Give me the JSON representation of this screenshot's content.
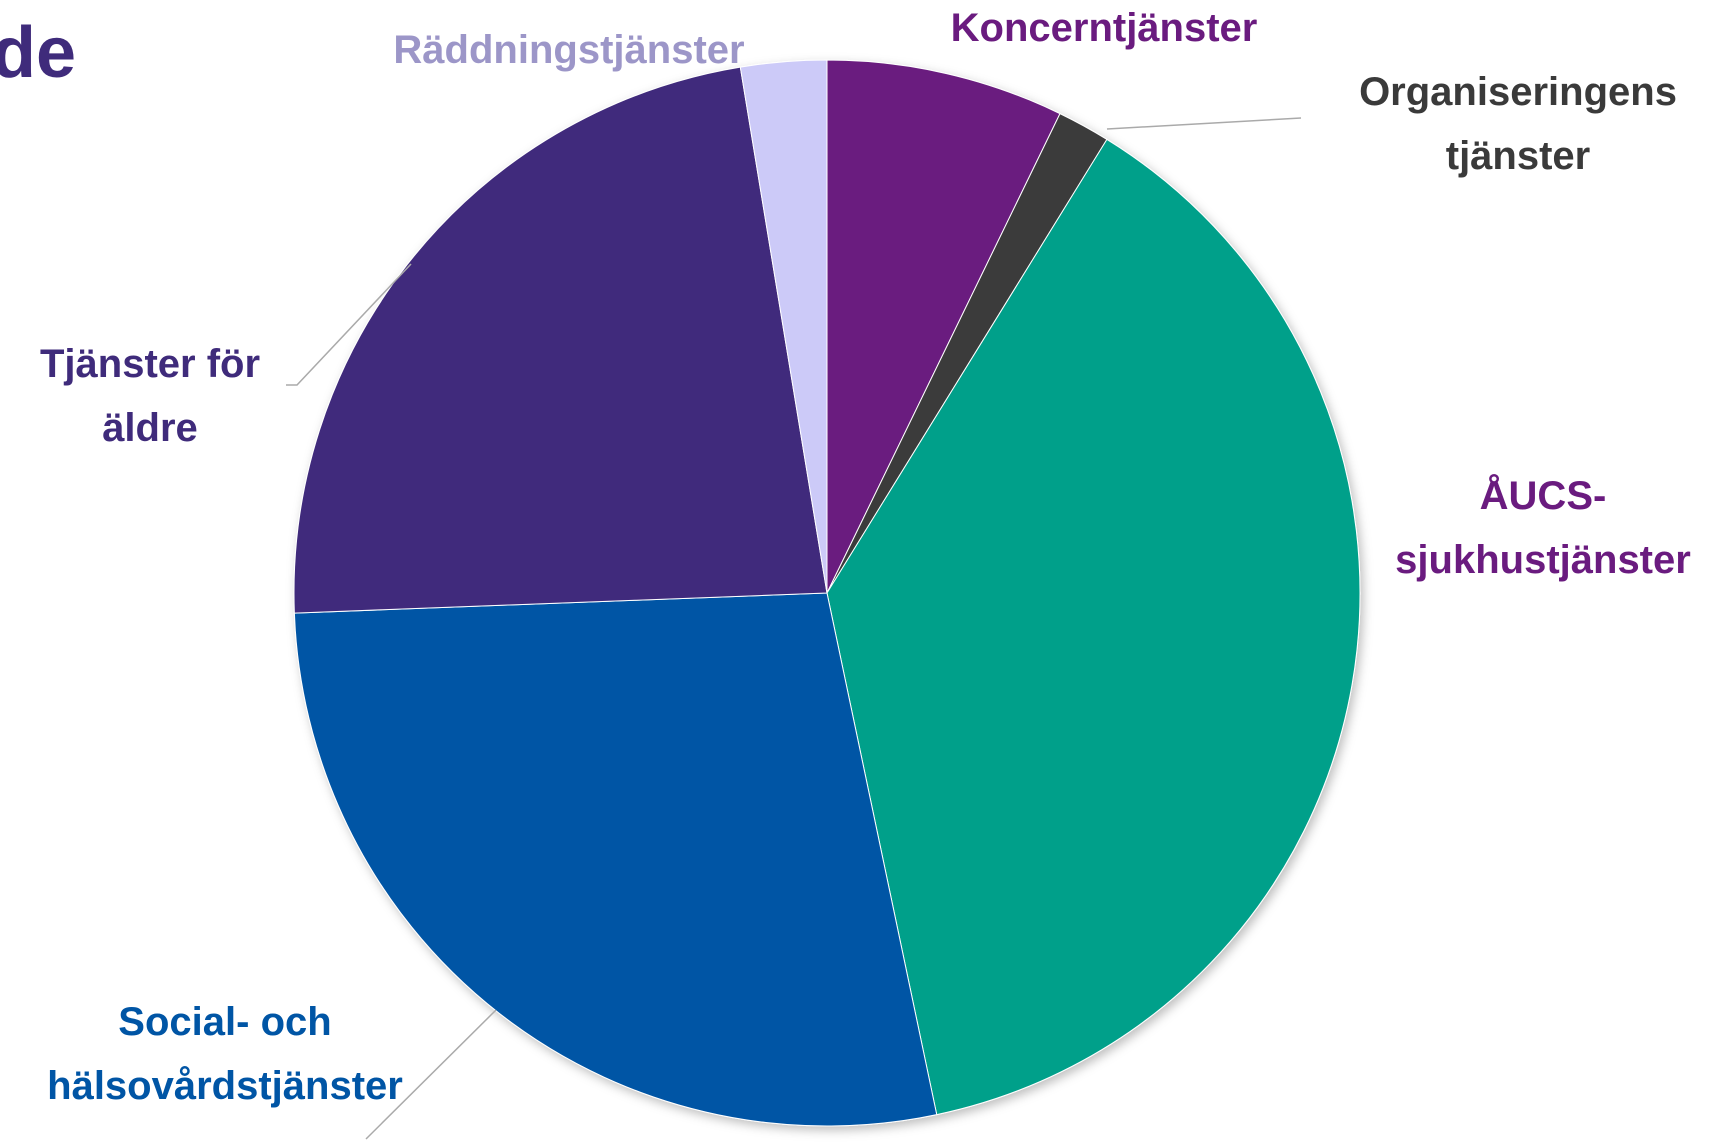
{
  "chart_data": {
    "type": "pie",
    "title": "de",
    "categories": [
      "Koncerntjänster",
      "Organiseringens tjänster",
      "ÅUCS-sjukhustjänster",
      "Social- och hälsovårdstjänster",
      "Tjänster för äldre",
      "Räddningstjänster"
    ],
    "values": [
      7.2,
      1.6,
      37.9,
      27.7,
      23.0,
      2.6
    ],
    "colors": [
      "#6a1b7f",
      "#3a3a3a",
      "#00a08a",
      "#0055a5",
      "#3f2b7b",
      "#cccaf8"
    ],
    "label_colors": [
      "#6a1b7f",
      "#3a3a3a",
      "#6a1b7f",
      "#0055a5",
      "#3f2b7b",
      "#9c96c8"
    ]
  }
}
